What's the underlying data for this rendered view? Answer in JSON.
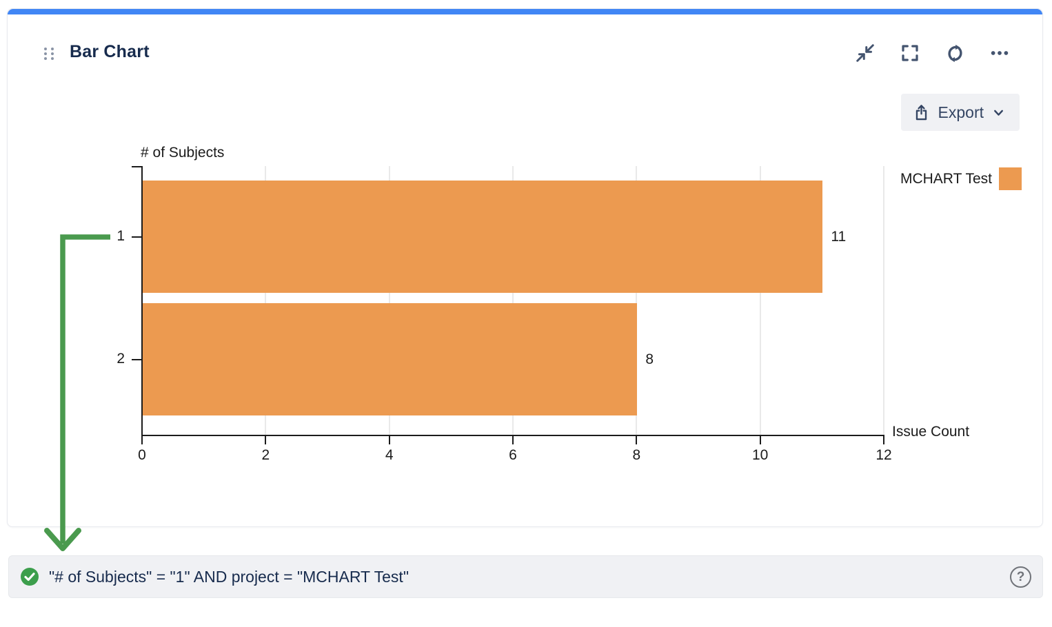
{
  "card": {
    "title": "Bar Chart",
    "accent_color": "#4186f5",
    "header_icons": [
      {
        "name": "collapse-icon"
      },
      {
        "name": "fullscreen-icon"
      },
      {
        "name": "refresh-icon"
      },
      {
        "name": "more-options-icon"
      }
    ],
    "export": {
      "label": "Export",
      "icon": "share-upload-icon",
      "chevron": "chevron-down-icon"
    }
  },
  "chart_data": {
    "type": "bar",
    "orientation": "horizontal",
    "categories": [
      "1",
      "2"
    ],
    "series": [
      {
        "name": "MCHART Test",
        "color": "#ec9a50",
        "values": [
          11,
          8
        ]
      }
    ],
    "value_labels": [
      "11",
      "8"
    ],
    "xlabel": "Issue Count",
    "ylabel": "# of Subjects",
    "xlim": [
      0,
      12
    ],
    "x_ticks": [
      0,
      2,
      4,
      6,
      8,
      10,
      12
    ],
    "grid": true,
    "legend": {
      "position": "top-right",
      "entries": [
        {
          "label": "MCHART Test",
          "color": "#ec9a50"
        }
      ]
    }
  },
  "annotation": {
    "arrow_color": "#4a9a4e",
    "points_from": "category-1-tick",
    "points_to": "query-bar"
  },
  "query_bar": {
    "status_icon": "check-circle-icon",
    "status_color": "#3c9e4c",
    "text": "\"# of Subjects\" = \"1\" AND project = \"MCHART Test\"",
    "help_label": "?"
  }
}
